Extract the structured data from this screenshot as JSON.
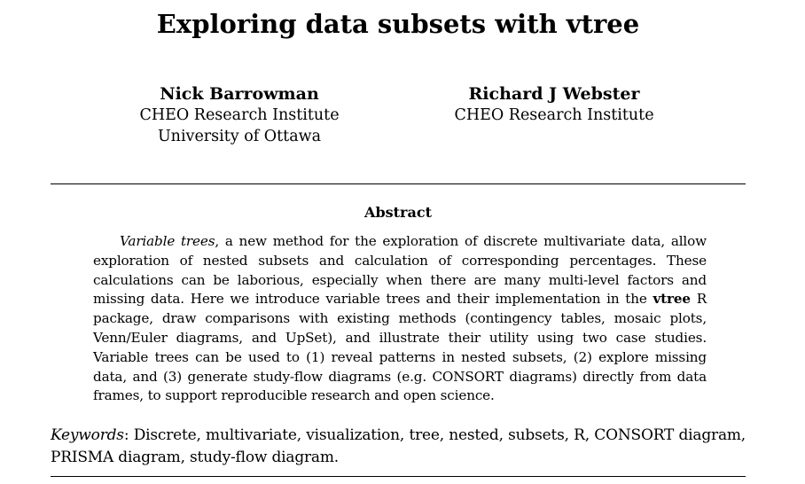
{
  "title": "Exploring data subsets with vtree",
  "authors": [
    {
      "name": "Nick Barrowman",
      "affiliations": [
        "CHEO Research Institute",
        "University of Ottawa"
      ]
    },
    {
      "name": "Richard J Webster",
      "affiliations": [
        "CHEO Research Institute"
      ]
    }
  ],
  "abstract": {
    "heading": "Abstract",
    "lead_italic": "Variable trees",
    "text_1": ", a new method for the exploration of discrete multivariate data, allow exploration of nested subsets and calculation of corresponding percentages. These calculations can be laborious, especially when there are many multi-level factors and missing data. Here we introduce variable trees and their implementation in the ",
    "package_name": "vtree",
    "text_2": " R package, draw comparisons with existing methods (contingency tables, mosaic plots, Venn/Euler diagrams, and UpSet), and illustrate their utility using two case studies. Variable trees can be used to (1) reveal patterns in nested subsets, (2) explore missing data, and (3) generate study-flow diagrams (e.g. CONSORT diagrams) directly from data frames, to support reproducible research and open science."
  },
  "keywords": {
    "label": "Keywords",
    "text": ": Discrete, multivariate, visualization, tree, nested, subsets, R, CONSORT diagram, PRISMA diagram, study-flow diagram."
  }
}
